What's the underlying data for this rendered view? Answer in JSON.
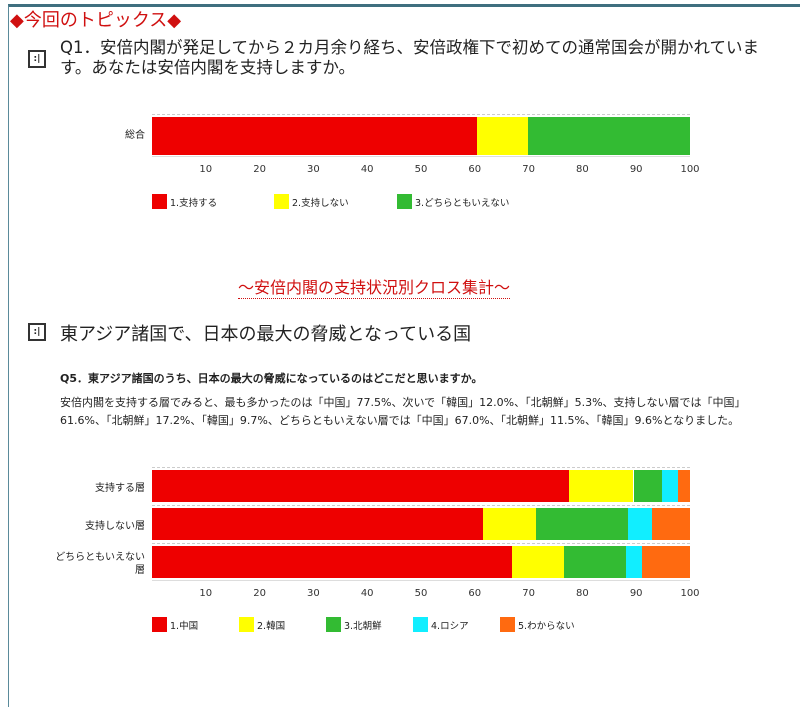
{
  "topic_heading": "◆今回のトピックス◆",
  "q1": {
    "text": "Q1．安倍内閣が発足してから２カ月余り経ち、安倍政権下で初めての通常国会が開かれています。あなたは安倍内閣を支持しますか。"
  },
  "section_title": "～安倍内閣の支持状況別クロス集計～",
  "section2_heading": "東アジア諸国で、日本の最大の脅威となっている国",
  "q5": {
    "text": "Q5．東アジア諸国のうち、日本の最大の脅威になっているのはどこだと思いますか。",
    "paragraph": "安倍内閣を支持する層でみると、最も多かったのは「中国」77.5%、次いで「韓国」12.0%、「北朝鮮」5.3%、支持しない層では「中国」61.6%、「北朝鮮」17.2%、「韓国」9.7%、どちらともいえない層では「中国」67.0%、「北朝鮮」11.5%、「韓国」9.6%となりました。"
  },
  "chart_data": [
    {
      "type": "bar",
      "stacked": true,
      "orientation": "horizontal",
      "categories": [
        "総合"
      ],
      "xlim": [
        0,
        100
      ],
      "ticks": [
        "10",
        "20",
        "30",
        "40",
        "50",
        "60",
        "70",
        "80",
        "90",
        "100"
      ],
      "series": [
        {
          "name": "1.支持する",
          "color": "#ee0000",
          "values": [
            60.4
          ]
        },
        {
          "name": "2.支持しない",
          "color": "#ffff00",
          "values": [
            9.5
          ]
        },
        {
          "name": "3.どちらともいえない",
          "color": "#33bb33",
          "values": [
            30.1
          ]
        }
      ],
      "legend": "bottom"
    },
    {
      "type": "bar",
      "stacked": true,
      "orientation": "horizontal",
      "categories": [
        "支持する層",
        "支持しない層",
        "どちらともいえない層"
      ],
      "xlim": [
        0,
        100
      ],
      "ticks": [
        "10",
        "20",
        "30",
        "40",
        "50",
        "60",
        "70",
        "80",
        "90",
        "100"
      ],
      "series": [
        {
          "name": "1.中国",
          "color": "#ee0000",
          "values": [
            77.5,
            61.6,
            67.0
          ]
        },
        {
          "name": "2.韓国",
          "color": "#ffff00",
          "values": [
            12.0,
            9.7,
            9.6
          ]
        },
        {
          "name": "3.北朝鮮",
          "color": "#33bb33",
          "values": [
            5.3,
            17.2,
            11.5
          ]
        },
        {
          "name": "4.ロシア",
          "color": "#11eeff",
          "values": [
            3.0,
            4.4,
            3.0
          ]
        },
        {
          "name": "5.わからない",
          "color": "#ff6a10",
          "values": [
            2.2,
            7.1,
            8.9
          ]
        }
      ],
      "legend": "bottom"
    }
  ]
}
